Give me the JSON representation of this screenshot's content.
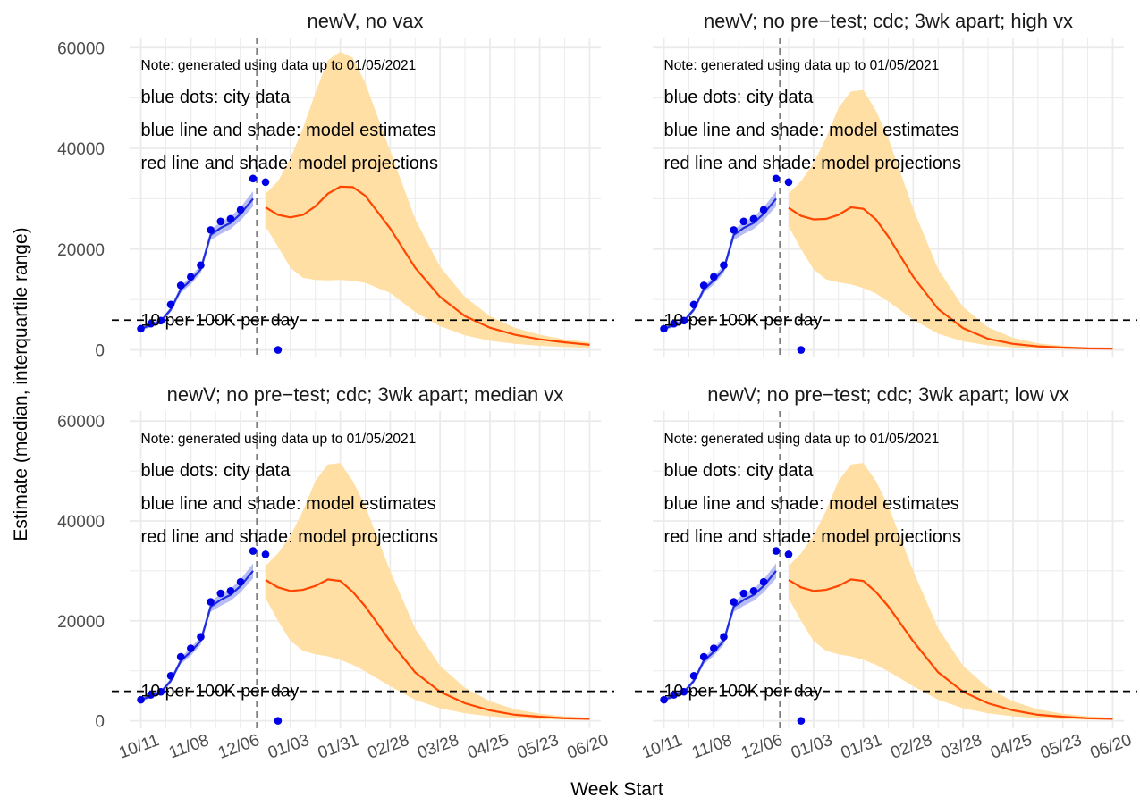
{
  "chart_data": {
    "type": "line",
    "layout": "facet-grid-2x2",
    "xlabel": "Week Start",
    "ylabel": "Estimate (median, interquartile range)",
    "ylim": [
      -1500,
      62000
    ],
    "yticks": [
      0,
      20000,
      40000,
      60000
    ],
    "x_ticks": [
      "10/11",
      "11/08",
      "12/06",
      "01/03",
      "01/31",
      "02/28",
      "03/28",
      "04/25",
      "05/23",
      "06/20"
    ],
    "x_range_week_index": [
      -0.9,
      36.9
    ],
    "cutoff_week_index": 9.3,
    "threshold": {
      "value": 5900,
      "label": "10 per 100K per day"
    },
    "annotations": [
      "Note: generated using data up to 01/05/2021",
      "blue dots: city data",
      "blue line and shade: model estimates",
      "red line and shade: model projections"
    ],
    "legend": "none",
    "grid": true,
    "colors": {
      "city_data": "#0000e6",
      "model_estimate": "#1f2ee0",
      "estimate_band": "#9fa6f0",
      "projection": "#ff4500",
      "projection_band": "#ffdfa3",
      "grid": "#ebebeb"
    },
    "city_data": {
      "x": [
        0,
        0.8,
        1.6,
        2.4,
        3.2,
        4,
        4.8,
        5.6,
        6.4,
        7.2,
        8,
        9,
        10,
        11
      ],
      "y": [
        4200,
        5200,
        5800,
        9000,
        12800,
        14500,
        16800,
        23800,
        25500,
        26000,
        27800,
        34000,
        33300,
        0
      ]
    },
    "model_estimate": {
      "x": [
        0,
        0.8,
        1.6,
        2.4,
        3.2,
        4,
        4.8,
        5.6,
        6.4,
        7.2,
        8,
        9
      ],
      "median": [
        4200,
        4900,
        5700,
        8000,
        12000,
        13800,
        16000,
        22800,
        24200,
        25200,
        27000,
        30000
      ],
      "low": [
        3900,
        4500,
        5300,
        7500,
        11300,
        13000,
        15200,
        21800,
        23000,
        24000,
        25700,
        28500
      ],
      "high": [
        4500,
        5300,
        6100,
        8500,
        12700,
        14600,
        16800,
        23800,
        25400,
        26400,
        28300,
        31500
      ]
    },
    "panels": [
      {
        "title": "newV, no vax",
        "projection": {
          "x": [
            10,
            11,
            12,
            13,
            14,
            15,
            16,
            17,
            18,
            20,
            22,
            24,
            26,
            28,
            30,
            32,
            34,
            36
          ],
          "median": [
            28300,
            26800,
            26300,
            26800,
            28500,
            31000,
            32400,
            32300,
            30600,
            24100,
            16300,
            10500,
            6700,
            4400,
            3000,
            2100,
            1500,
            1000
          ],
          "low": [
            24500,
            20500,
            16300,
            14300,
            13900,
            13800,
            13900,
            13700,
            13300,
            11300,
            7500,
            4700,
            2900,
            1800,
            1200,
            800,
            550,
            400
          ],
          "high": [
            31000,
            33500,
            38000,
            44000,
            51000,
            57500,
            59200,
            58000,
            53000,
            39500,
            26000,
            16500,
            10500,
            6700,
            4400,
            3000,
            2100,
            1500
          ]
        }
      },
      {
        "title": "newV; no pre−test; cdc; 3wk apart; high vx",
        "projection": {
          "x": [
            10,
            11,
            12,
            13,
            14,
            15,
            16,
            17,
            18,
            20,
            22,
            24,
            26,
            28,
            30,
            32,
            34,
            36
          ],
          "median": [
            28200,
            26600,
            25900,
            26000,
            26800,
            28300,
            28000,
            25900,
            22500,
            14500,
            8100,
            4300,
            2200,
            1200,
            700,
            450,
            300,
            250
          ],
          "low": [
            24500,
            20000,
            16000,
            14000,
            13400,
            13000,
            12300,
            11200,
            9600,
            6000,
            3200,
            1700,
            900,
            500,
            300,
            200,
            150,
            100
          ],
          "high": [
            31000,
            33500,
            37000,
            42000,
            48000,
            51300,
            51600,
            47500,
            42000,
            28000,
            16000,
            8500,
            4500,
            2400,
            1300,
            800,
            500,
            400
          ]
        }
      },
      {
        "title": "newV; no pre−test; cdc; 3wk apart; median vx",
        "projection": {
          "x": [
            10,
            11,
            12,
            13,
            14,
            15,
            16,
            17,
            18,
            20,
            22,
            24,
            26,
            28,
            30,
            32,
            34,
            36
          ],
          "median": [
            28200,
            26700,
            26000,
            26200,
            27000,
            28300,
            28000,
            25800,
            22900,
            15900,
            9700,
            5800,
            3500,
            2100,
            1200,
            800,
            500,
            400
          ],
          "low": [
            24500,
            20000,
            16000,
            14000,
            13300,
            12900,
            12200,
            11200,
            9900,
            6900,
            4200,
            2500,
            1500,
            900,
            500,
            350,
            250,
            200
          ],
          "high": [
            31000,
            33500,
            37000,
            42000,
            48000,
            51300,
            51600,
            48000,
            43000,
            30000,
            18500,
            11000,
            6600,
            3900,
            2300,
            1400,
            900,
            600
          ]
        }
      },
      {
        "title": "newV; no pre−test; cdc; 3wk apart; low vx",
        "projection": {
          "x": [
            10,
            11,
            12,
            13,
            14,
            15,
            16,
            17,
            18,
            20,
            22,
            24,
            26,
            28,
            30,
            32,
            34,
            36
          ],
          "median": [
            28200,
            26700,
            26000,
            26200,
            27000,
            28300,
            28000,
            25800,
            22900,
            15900,
            9700,
            5800,
            3500,
            2100,
            1200,
            800,
            500,
            400
          ],
          "low": [
            24500,
            20000,
            16000,
            14000,
            13300,
            12900,
            12200,
            11200,
            9900,
            6900,
            4200,
            2500,
            1500,
            900,
            500,
            350,
            250,
            200
          ],
          "high": [
            31000,
            33500,
            37000,
            42000,
            48000,
            51300,
            51600,
            48000,
            43000,
            30000,
            18500,
            11000,
            6600,
            3900,
            2300,
            1400,
            900,
            600
          ]
        }
      }
    ]
  }
}
